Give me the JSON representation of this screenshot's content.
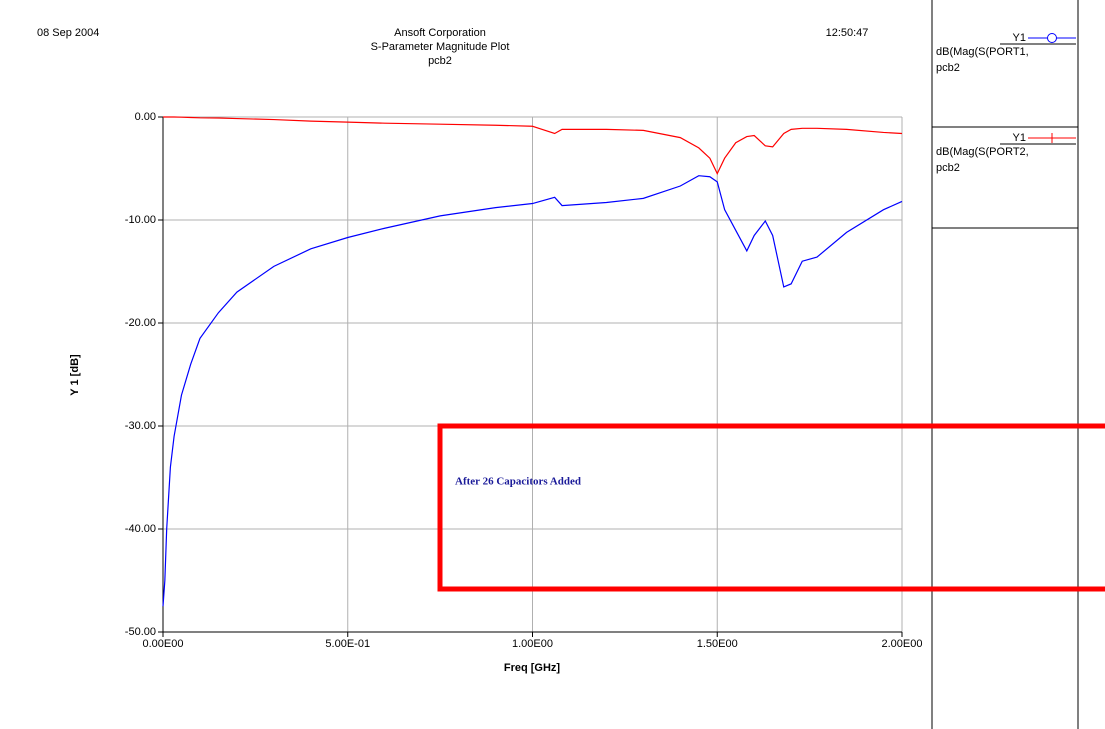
{
  "chart_data": {
    "type": "line",
    "date": "08 Sep 2004",
    "company": "Ansoft Corporation",
    "title": "S-Parameter Magnitude Plot",
    "subtitle": "pcb2",
    "time": "12:50:47",
    "x_label": "Freq [GHz]",
    "y_label": "Y 1  [dB]",
    "xlim": [
      0,
      2
    ],
    "ylim": [
      -50,
      0
    ],
    "xticks": [
      {
        "value": 0,
        "label": "0.00E00"
      },
      {
        "value": 0.5,
        "label": "5.00E-01"
      },
      {
        "value": 1,
        "label": "1.00E00"
      },
      {
        "value": 1.5,
        "label": "1.50E00"
      },
      {
        "value": 2,
        "label": "2.00E00"
      }
    ],
    "yticks": [
      {
        "value": 0,
        "label": "0.00"
      },
      {
        "value": -10,
        "label": "-10.00"
      },
      {
        "value": -20,
        "label": "-20.00"
      },
      {
        "value": -30,
        "label": "-30.00"
      },
      {
        "value": -40,
        "label": "-40.00"
      },
      {
        "value": -50,
        "label": "-50.00"
      }
    ],
    "grid": true,
    "x": [
      0,
      0.005,
      0.01,
      0.02,
      0.03,
      0.05,
      0.075,
      0.1,
      0.15,
      0.2,
      0.3,
      0.4,
      0.5,
      0.6,
      0.75,
      0.9,
      1.0,
      1.06,
      1.08,
      1.2,
      1.3,
      1.4,
      1.45,
      1.48,
      1.5,
      1.52,
      1.55,
      1.58,
      1.6,
      1.63,
      1.65,
      1.68,
      1.7,
      1.73,
      1.77,
      1.85,
      1.95,
      2.0
    ],
    "series": [
      {
        "name": "dB(Mag(S(PORT1,",
        "legend_axis": "Y1",
        "design": "pcb2",
        "color": "#0000ff",
        "marker": "circle",
        "values": [
          -47.5,
          -45,
          -40,
          -34,
          -31,
          -27,
          -24,
          -21.5,
          -19,
          -17,
          -14.5,
          -12.8,
          -11.7,
          -10.8,
          -9.6,
          -8.8,
          -8.4,
          -7.8,
          -8.6,
          -8.3,
          -7.9,
          -6.7,
          -5.7,
          -5.8,
          -6.3,
          -9,
          -11,
          -13,
          -11.5,
          -10.1,
          -11.5,
          -16.5,
          -16.2,
          -14,
          -13.6,
          -11.2,
          -9,
          -8.2
        ]
      },
      {
        "name": "dB(Mag(S(PORT2,",
        "legend_axis": "Y1",
        "design": "pcb2",
        "color": "#ff0000",
        "marker": "cross",
        "values": [
          0,
          0,
          0,
          0,
          0,
          -0.02,
          -0.05,
          -0.08,
          -0.1,
          -0.15,
          -0.25,
          -0.4,
          -0.5,
          -0.6,
          -0.7,
          -0.8,
          -0.9,
          -1.6,
          -1.2,
          -1.2,
          -1.3,
          -2.0,
          -3.0,
          -4.0,
          -5.5,
          -4.0,
          -2.5,
          -1.9,
          -1.8,
          -2.8,
          -2.9,
          -1.6,
          -1.2,
          -1.1,
          -1.1,
          -1.2,
          -1.5,
          -1.6
        ]
      }
    ],
    "annotation": "After 26 Capacitors Added"
  }
}
